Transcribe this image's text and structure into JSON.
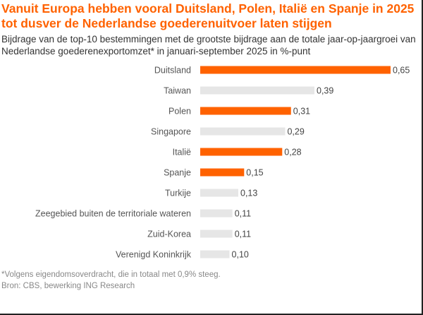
{
  "chart_data": {
    "type": "bar",
    "orientation": "horizontal",
    "title": "Vanuit Europa hebben vooral Duitsland, Polen, Italië en Spanje in 2025 tot dusver de Nederlandse goederenuitvoer laten stijgen",
    "subtitle": "Bijdrage van de top-10 bestemmingen met de grootste bijdrage aan de totale jaar-op-jaargroei van Nederlandse goederenexportomzet* in januari-september 2025 in %-punt",
    "categories": [
      "Duitsland",
      "Taiwan",
      "Polen",
      "Singapore",
      "Italië",
      "Spanje",
      "Turkije",
      "Zeegebied buiten de territoriale wateren",
      "Zuid-Korea",
      "Verenigd Koninkrijk"
    ],
    "values": [
      0.65,
      0.39,
      0.31,
      0.29,
      0.28,
      0.15,
      0.13,
      0.11,
      0.11,
      0.1
    ],
    "value_labels": [
      "0,65",
      "0,39",
      "0,31",
      "0,29",
      "0,28",
      "0,15",
      "0,13",
      "0,11",
      "0,11",
      "0,10"
    ],
    "highlight": [
      true,
      false,
      true,
      false,
      true,
      true,
      false,
      false,
      false,
      false
    ],
    "colors": {
      "highlight": "#ff6200",
      "other": "#e6e6e6"
    },
    "xlim": [
      0,
      0.65
    ],
    "grid": false
  },
  "footnote": "*Volgens eigendomsoverdracht, die in totaal met 0,9% steeg.",
  "source": "Bron: CBS, bewerking ING Research"
}
